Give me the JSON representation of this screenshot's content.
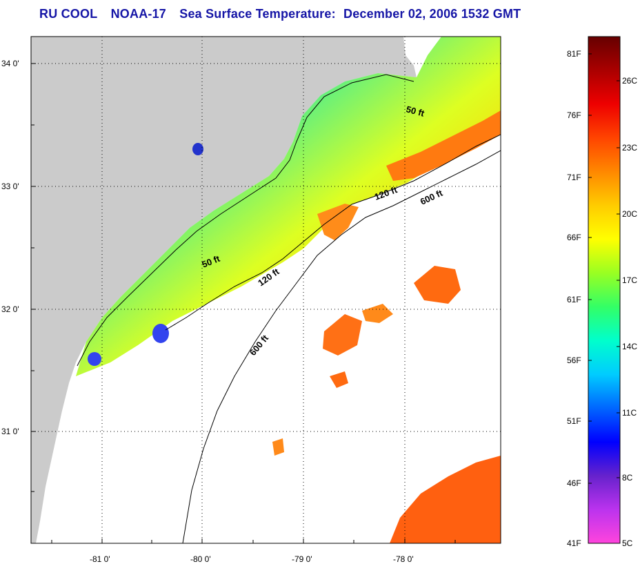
{
  "title": {
    "source": "RU COOL",
    "satellite": "NOAA-17",
    "product": "Sea Surface Temperature:",
    "date": "December 02, 2006 1532 GMT"
  },
  "axes": {
    "lon_ticks": [
      "-81 0'",
      "-80 0'",
      "-79 0'",
      "-78 0'"
    ],
    "lat_ticks": [
      "34 0'",
      "33 0'",
      "32 0'",
      "31 0'"
    ]
  },
  "contours": {
    "shallow_labels": [
      "50 ft",
      "50 ft"
    ],
    "mid_labels": [
      "120 ft",
      "120 ft"
    ],
    "deep_labels": [
      "600 ft",
      "600 ft"
    ]
  },
  "colorbar": {
    "fahrenheit": [
      "81F",
      "76F",
      "71F",
      "66F",
      "61F",
      "56F",
      "51F",
      "46F",
      "41F"
    ],
    "celsius": [
      "26C",
      "23C",
      "20C",
      "17C",
      "14C",
      "11C",
      "8C",
      "5C"
    ],
    "stops": [
      "#ff44dd",
      "#bb33ee",
      "#6622cc",
      "#0000ff",
      "#0066ff",
      "#00ccff",
      "#00ffcc",
      "#33ff66",
      "#99ff22",
      "#ffff00",
      "#ffcc00",
      "#ff8800",
      "#ff4400",
      "#ee0000",
      "#aa0000",
      "#660000"
    ]
  },
  "colors": {
    "land": "#cbcbcb",
    "no_data": "#ffffff",
    "title": "#1515a6",
    "grid": "#000000"
  }
}
